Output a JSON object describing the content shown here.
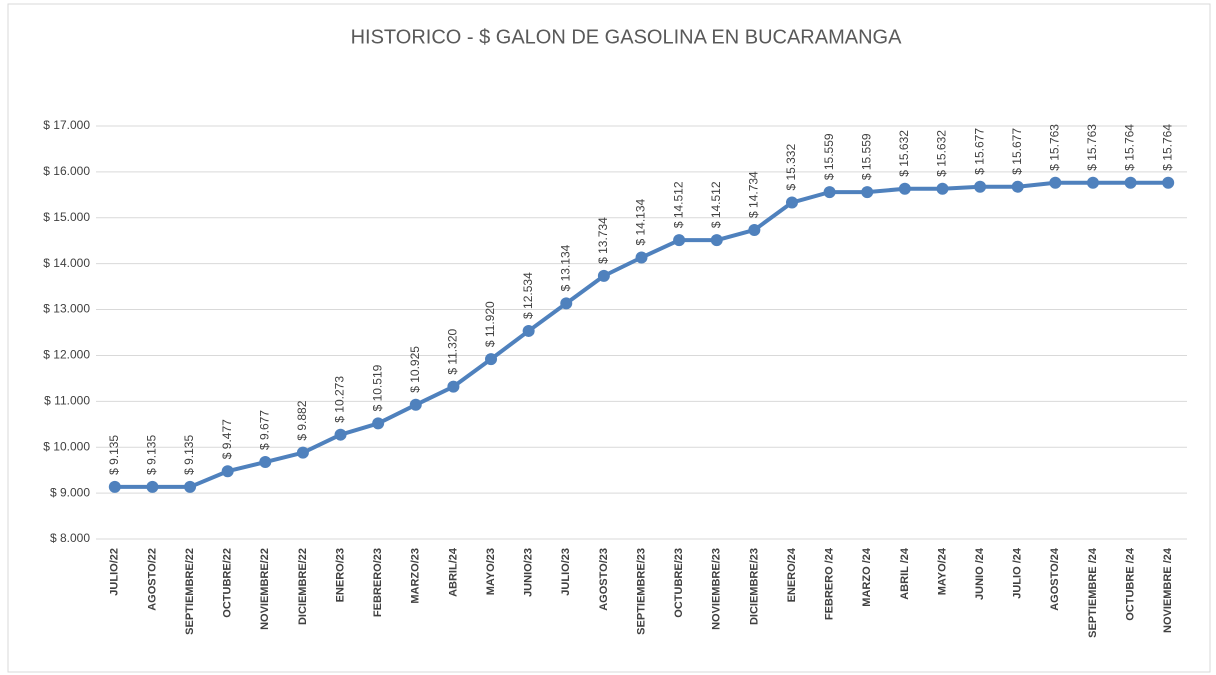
{
  "chart_data": {
    "type": "line",
    "title": "HISTORICO - $ GALON DE GASOLINA EN BUCARAMANGA",
    "categories": [
      "JULIO/22",
      "AGOSTO/22",
      "SEPTIEMBRE/22",
      "OCTUBRE/22",
      "NOVIEMBRE/22",
      "DICIEMBRE/22",
      "ENERO/23",
      "FEBRERO/23",
      "MARZO/23",
      "ABRIL/24",
      "MAYO/23",
      "JUNIO/23",
      "JULIO/23",
      "AGOSTO/23",
      "SEPTIEMBRE/23",
      "OCTUBRE/23",
      "NOVIEMBRE/23",
      "DICIEMBRE/23",
      "ENERO/24",
      "FEBRERO /24",
      "MARZO /24",
      "ABRIL /24",
      "MAYO/24",
      "JUNIO /24",
      "JULIO /24",
      "AGOSTO/24",
      "SEPTIEMBRE /24",
      "OCTUBRE /24",
      "NOVIEMBRE /24"
    ],
    "values": [
      9135,
      9135,
      9135,
      9477,
      9677,
      9882,
      10273,
      10519,
      10925,
      11320,
      11920,
      12534,
      13134,
      13734,
      14134,
      14512,
      14512,
      14734,
      15332,
      15559,
      15559,
      15632,
      15632,
      15677,
      15677,
      15763,
      15763,
      15764,
      15764
    ],
    "value_labels": [
      "$ 9.135",
      "$ 9.135",
      "$ 9.135",
      "$ 9.477",
      "$ 9.677",
      "$ 9.882",
      "$ 10.273",
      "$ 10.519",
      "$ 10.925",
      "$ 11.320",
      "$ 11.920",
      "$ 12.534",
      "$ 13.134",
      "$ 13.734",
      "$ 14.134",
      "$ 14.512",
      "$ 14.512",
      "$ 14.734",
      "$ 15.332",
      "$ 15.559",
      "$ 15.559",
      "$ 15.632",
      "$ 15.632",
      "$ 15.677",
      "$ 15.677",
      "$ 15.763",
      "$ 15.763",
      "$ 15.764",
      "$ 15.764"
    ],
    "color": "#4f81bd",
    "ylim": [
      8000,
      17000
    ],
    "yticks": [
      {
        "value": 8000,
        "label": "$ 8.000"
      },
      {
        "value": 9000,
        "label": "$ 9.000"
      },
      {
        "value": 10000,
        "label": "$ 10.000"
      },
      {
        "value": 11000,
        "label": "$ 11.000"
      },
      {
        "value": 12000,
        "label": "$ 12.000"
      },
      {
        "value": 13000,
        "label": "$ 13.000"
      },
      {
        "value": 14000,
        "label": "$ 14.000"
      },
      {
        "value": 15000,
        "label": "$ 15.000"
      },
      {
        "value": 16000,
        "label": "$ 16.000"
      },
      {
        "value": 17000,
        "label": "$ 17.000"
      }
    ],
    "grid": true
  }
}
